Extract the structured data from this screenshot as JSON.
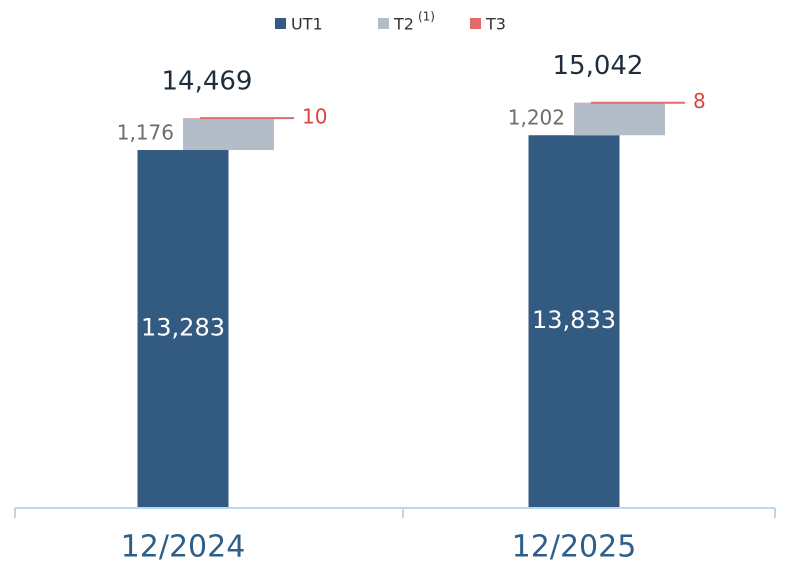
{
  "chart_data": {
    "type": "bar",
    "stacked": true,
    "categories": [
      "12/2024",
      "12/2025"
    ],
    "series": [
      {
        "name": "UT1",
        "color": "#335a80",
        "values": [
          13283,
          13833
        ],
        "value_labels": [
          "13,283",
          "13,833"
        ]
      },
      {
        "name": "T2",
        "superscript": "(1)",
        "color": "#b3bdc8",
        "values": [
          1176,
          1202
        ],
        "value_labels": [
          "1,176",
          "1,202"
        ]
      },
      {
        "name": "T3",
        "color": "#e06b6b",
        "values": [
          10,
          8
        ],
        "value_labels": [
          "10",
          "8"
        ]
      }
    ],
    "totals": [
      14469,
      15042
    ],
    "total_labels": [
      "14,469",
      "15,042"
    ],
    "ylim": [
      0,
      16000
    ],
    "yticks": [],
    "grid": false,
    "legend": "top"
  }
}
